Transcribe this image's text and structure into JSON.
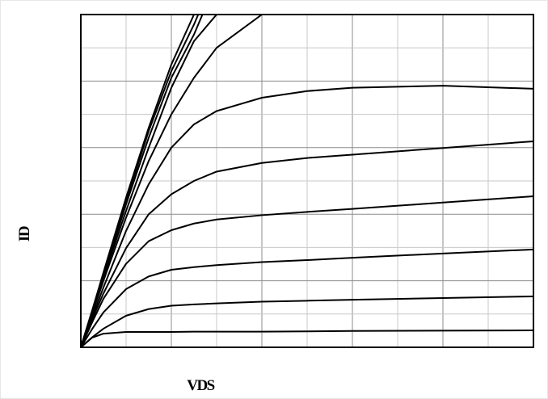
{
  "chart_data": {
    "type": "line",
    "xlabel": "VDS",
    "ylabel": "ID",
    "x": [
      0,
      0.25,
      0.5,
      1,
      1.5,
      2,
      2.5,
      3,
      4,
      5,
      6,
      8,
      10
    ],
    "series": [
      {
        "color": "#000000",
        "values": [
          0,
          0.29,
          0.41,
          0.46,
          0.46,
          0.46,
          0.47,
          0.47,
          0.47,
          0.48,
          0.49,
          0.5,
          0.51
        ]
      },
      {
        "color": "#000000",
        "values": [
          0,
          0.3,
          0.56,
          0.95,
          1.15,
          1.25,
          1.29,
          1.32,
          1.37,
          1.4,
          1.43,
          1.48,
          1.53
        ]
      },
      {
        "color": "#000000",
        "values": [
          0,
          0.55,
          1.05,
          1.75,
          2.13,
          2.33,
          2.41,
          2.47,
          2.56,
          2.62,
          2.69,
          2.82,
          2.94
        ]
      },
      {
        "color": "#000000",
        "values": [
          0,
          0.75,
          1.46,
          2.51,
          3.19,
          3.52,
          3.72,
          3.84,
          3.97,
          4.07,
          4.16,
          4.35,
          4.54
        ]
      },
      {
        "color": "#000000",
        "values": [
          0,
          0.84,
          1.62,
          2.98,
          4.0,
          4.6,
          5.0,
          5.28,
          5.54,
          5.69,
          5.79,
          5.99,
          6.19
        ]
      },
      {
        "color": "#000000",
        "values": [
          0,
          0.9,
          1.8,
          3.5,
          4.9,
          6.0,
          6.7,
          7.1,
          7.5,
          7.7,
          7.8,
          7.86,
          7.77
        ]
      },
      {
        "color": "#000000",
        "values": [
          0,
          1.0,
          2.0,
          3.9,
          5.6,
          7.0,
          8.1,
          9.0,
          10.0,
          null,
          null,
          null,
          null
        ]
      },
      {
        "color": "#000000",
        "values": [
          0,
          1.0,
          2.1,
          4.1,
          6.0,
          7.8,
          9.2,
          10.0,
          null,
          null,
          null,
          null,
          null
        ]
      },
      {
        "color": "#000000",
        "values": [
          0,
          1.05,
          2.15,
          4.3,
          6.3,
          8.1,
          9.4,
          11.0,
          null,
          null,
          null,
          null,
          null
        ]
      },
      {
        "color": "#000000",
        "values": [
          0,
          1.1,
          2.2,
          4.4,
          6.5,
          8.3,
          9.7,
          11.3,
          null,
          null,
          null,
          null,
          null
        ]
      },
      {
        "color": "#000000",
        "values": [
          0,
          1.1,
          2.25,
          4.5,
          6.6,
          8.5,
          10.0,
          11.5,
          null,
          null,
          null,
          null,
          null
        ]
      }
    ],
    "xlim": [
      0,
      10
    ],
    "ylim": [
      0,
      10
    ],
    "xticks": [
      0,
      1,
      2,
      3,
      4,
      5,
      6,
      7,
      8,
      9,
      10
    ],
    "yticks": [
      0,
      1,
      2,
      3,
      4,
      5,
      6,
      7,
      8,
      9,
      10
    ],
    "grid": true
  }
}
